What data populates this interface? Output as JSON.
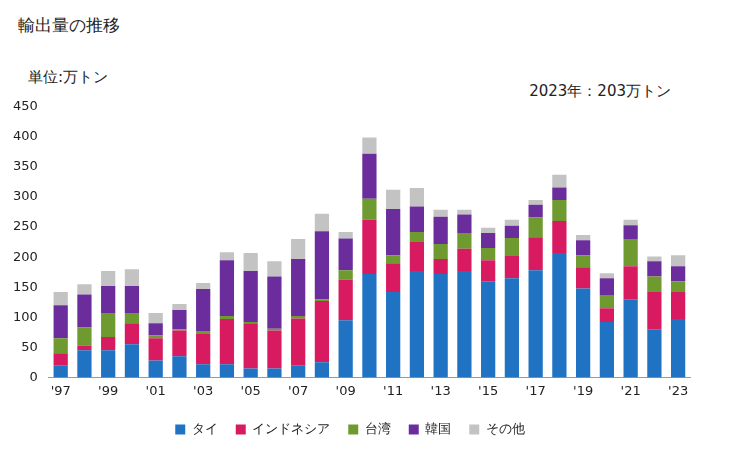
{
  "chart_data": {
    "type": "bar",
    "title": "輸出量の推移",
    "ylabel": "単位:万トン",
    "annotation": "2023年：203万トン",
    "categories": [
      "'97",
      null,
      "'99",
      null,
      "'01",
      null,
      "'03",
      null,
      "'05",
      null,
      "'07",
      null,
      "'09",
      null,
      "'11",
      null,
      "'13",
      null,
      "'15",
      null,
      "'17",
      null,
      "'19",
      null,
      "'21",
      null,
      "'23"
    ],
    "series": [
      {
        "name": "タイ",
        "color": "#1f73c2",
        "values": [
          20,
          45,
          45,
          55,
          28,
          35,
          22,
          22,
          15,
          15,
          20,
          25,
          95,
          172,
          142,
          177,
          172,
          177,
          160,
          165,
          178,
          207,
          148,
          92,
          130,
          80,
          97
        ]
      },
      {
        "name": "インドネシア",
        "color": "#d81b60",
        "values": [
          20,
          8,
          22,
          35,
          37,
          43,
          50,
          75,
          75,
          63,
          78,
          102,
          68,
          90,
          48,
          48,
          25,
          37,
          35,
          37,
          55,
          53,
          35,
          23,
          55,
          62,
          45
        ]
      },
      {
        "name": "台湾",
        "color": "#6e9a30",
        "values": [
          25,
          30,
          40,
          17,
          5,
          2,
          5,
          5,
          2,
          3,
          4,
          3,
          15,
          35,
          13,
          17,
          25,
          26,
          20,
          30,
          33,
          35,
          20,
          22,
          45,
          26,
          18
        ]
      },
      {
        "name": "韓国",
        "color": "#6b2d9b",
        "values": [
          55,
          55,
          45,
          45,
          20,
          32,
          70,
          93,
          85,
          87,
          95,
          113,
          53,
          75,
          77,
          42,
          45,
          31,
          25,
          20,
          21,
          21,
          25,
          28,
          23,
          25,
          25
        ]
      },
      {
        "name": "その他",
        "color": "#c3c3c3",
        "values": [
          22,
          17,
          25,
          28,
          17,
          10,
          10,
          13,
          30,
          25,
          33,
          29,
          11,
          27,
          32,
          31,
          12,
          8,
          9,
          10,
          8,
          21,
          9,
          8,
          9,
          8,
          18
        ]
      }
    ],
    "ylim": [
      0,
      450
    ],
    "yticks": [
      0,
      50,
      100,
      150,
      200,
      250,
      300,
      350,
      400,
      450
    ],
    "stacked": true,
    "grid": false,
    "legend": "bottom"
  }
}
